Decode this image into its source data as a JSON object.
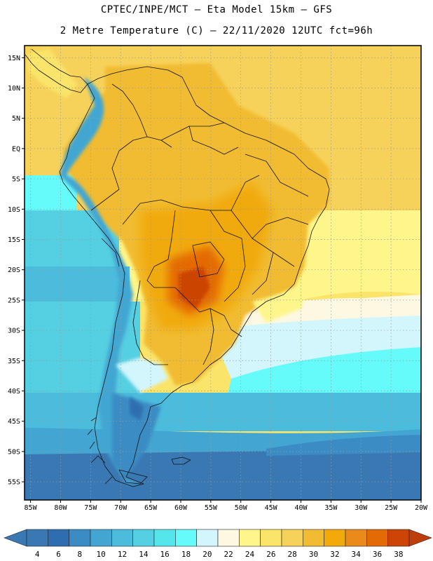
{
  "header": {
    "line1": "CPTEC/INPE/MCT –  Eta Model 15km – GFS",
    "line2": "2 Metre Temperature (C) – 22/11/2020 12UTC fct=96h"
  },
  "axes": {
    "lat_labels": [
      "15N",
      "10N",
      "5N",
      "EQ",
      "5S",
      "10S",
      "15S",
      "20S",
      "25S",
      "30S",
      "35S",
      "40S",
      "45S",
      "50S",
      "55S"
    ],
    "lat_values": [
      15,
      10,
      5,
      0,
      -5,
      -10,
      -15,
      -20,
      -25,
      -30,
      -35,
      -40,
      -45,
      -50,
      -55
    ],
    "lon_labels": [
      "85W",
      "80W",
      "75W",
      "70W",
      "65W",
      "60W",
      "55W",
      "50W",
      "45W",
      "40W",
      "35W",
      "30W",
      "25W",
      "20W"
    ],
    "lon_values": [
      -85,
      -80,
      -75,
      -70,
      -65,
      -60,
      -55,
      -50,
      -45,
      -40,
      -35,
      -30,
      -25,
      -20
    ],
    "lat_range": [
      -58,
      17
    ],
    "lon_range": [
      -86,
      -20
    ]
  },
  "legend": {
    "ticks": [
      "4",
      "6",
      "8",
      "10",
      "12",
      "14",
      "16",
      "18",
      "20",
      "22",
      "24",
      "26",
      "28",
      "30",
      "32",
      "34",
      "36",
      "38"
    ],
    "colors": [
      "#3a78b4",
      "#2e6eb0",
      "#3b8cc4",
      "#43a6d2",
      "#4bbcdc",
      "#55cfe2",
      "#55e6ec",
      "#66fbfb",
      "#d2f6fc",
      "#fdf8e2",
      "#fef68a",
      "#fbe46a",
      "#f7d25a",
      "#f1bc32",
      "#f1aa0a",
      "#e98a1a",
      "#e46a06",
      "#cc4406"
    ],
    "left_arrow_color": "#3a78b4",
    "right_arrow_color": "#bd3d0b"
  }
}
